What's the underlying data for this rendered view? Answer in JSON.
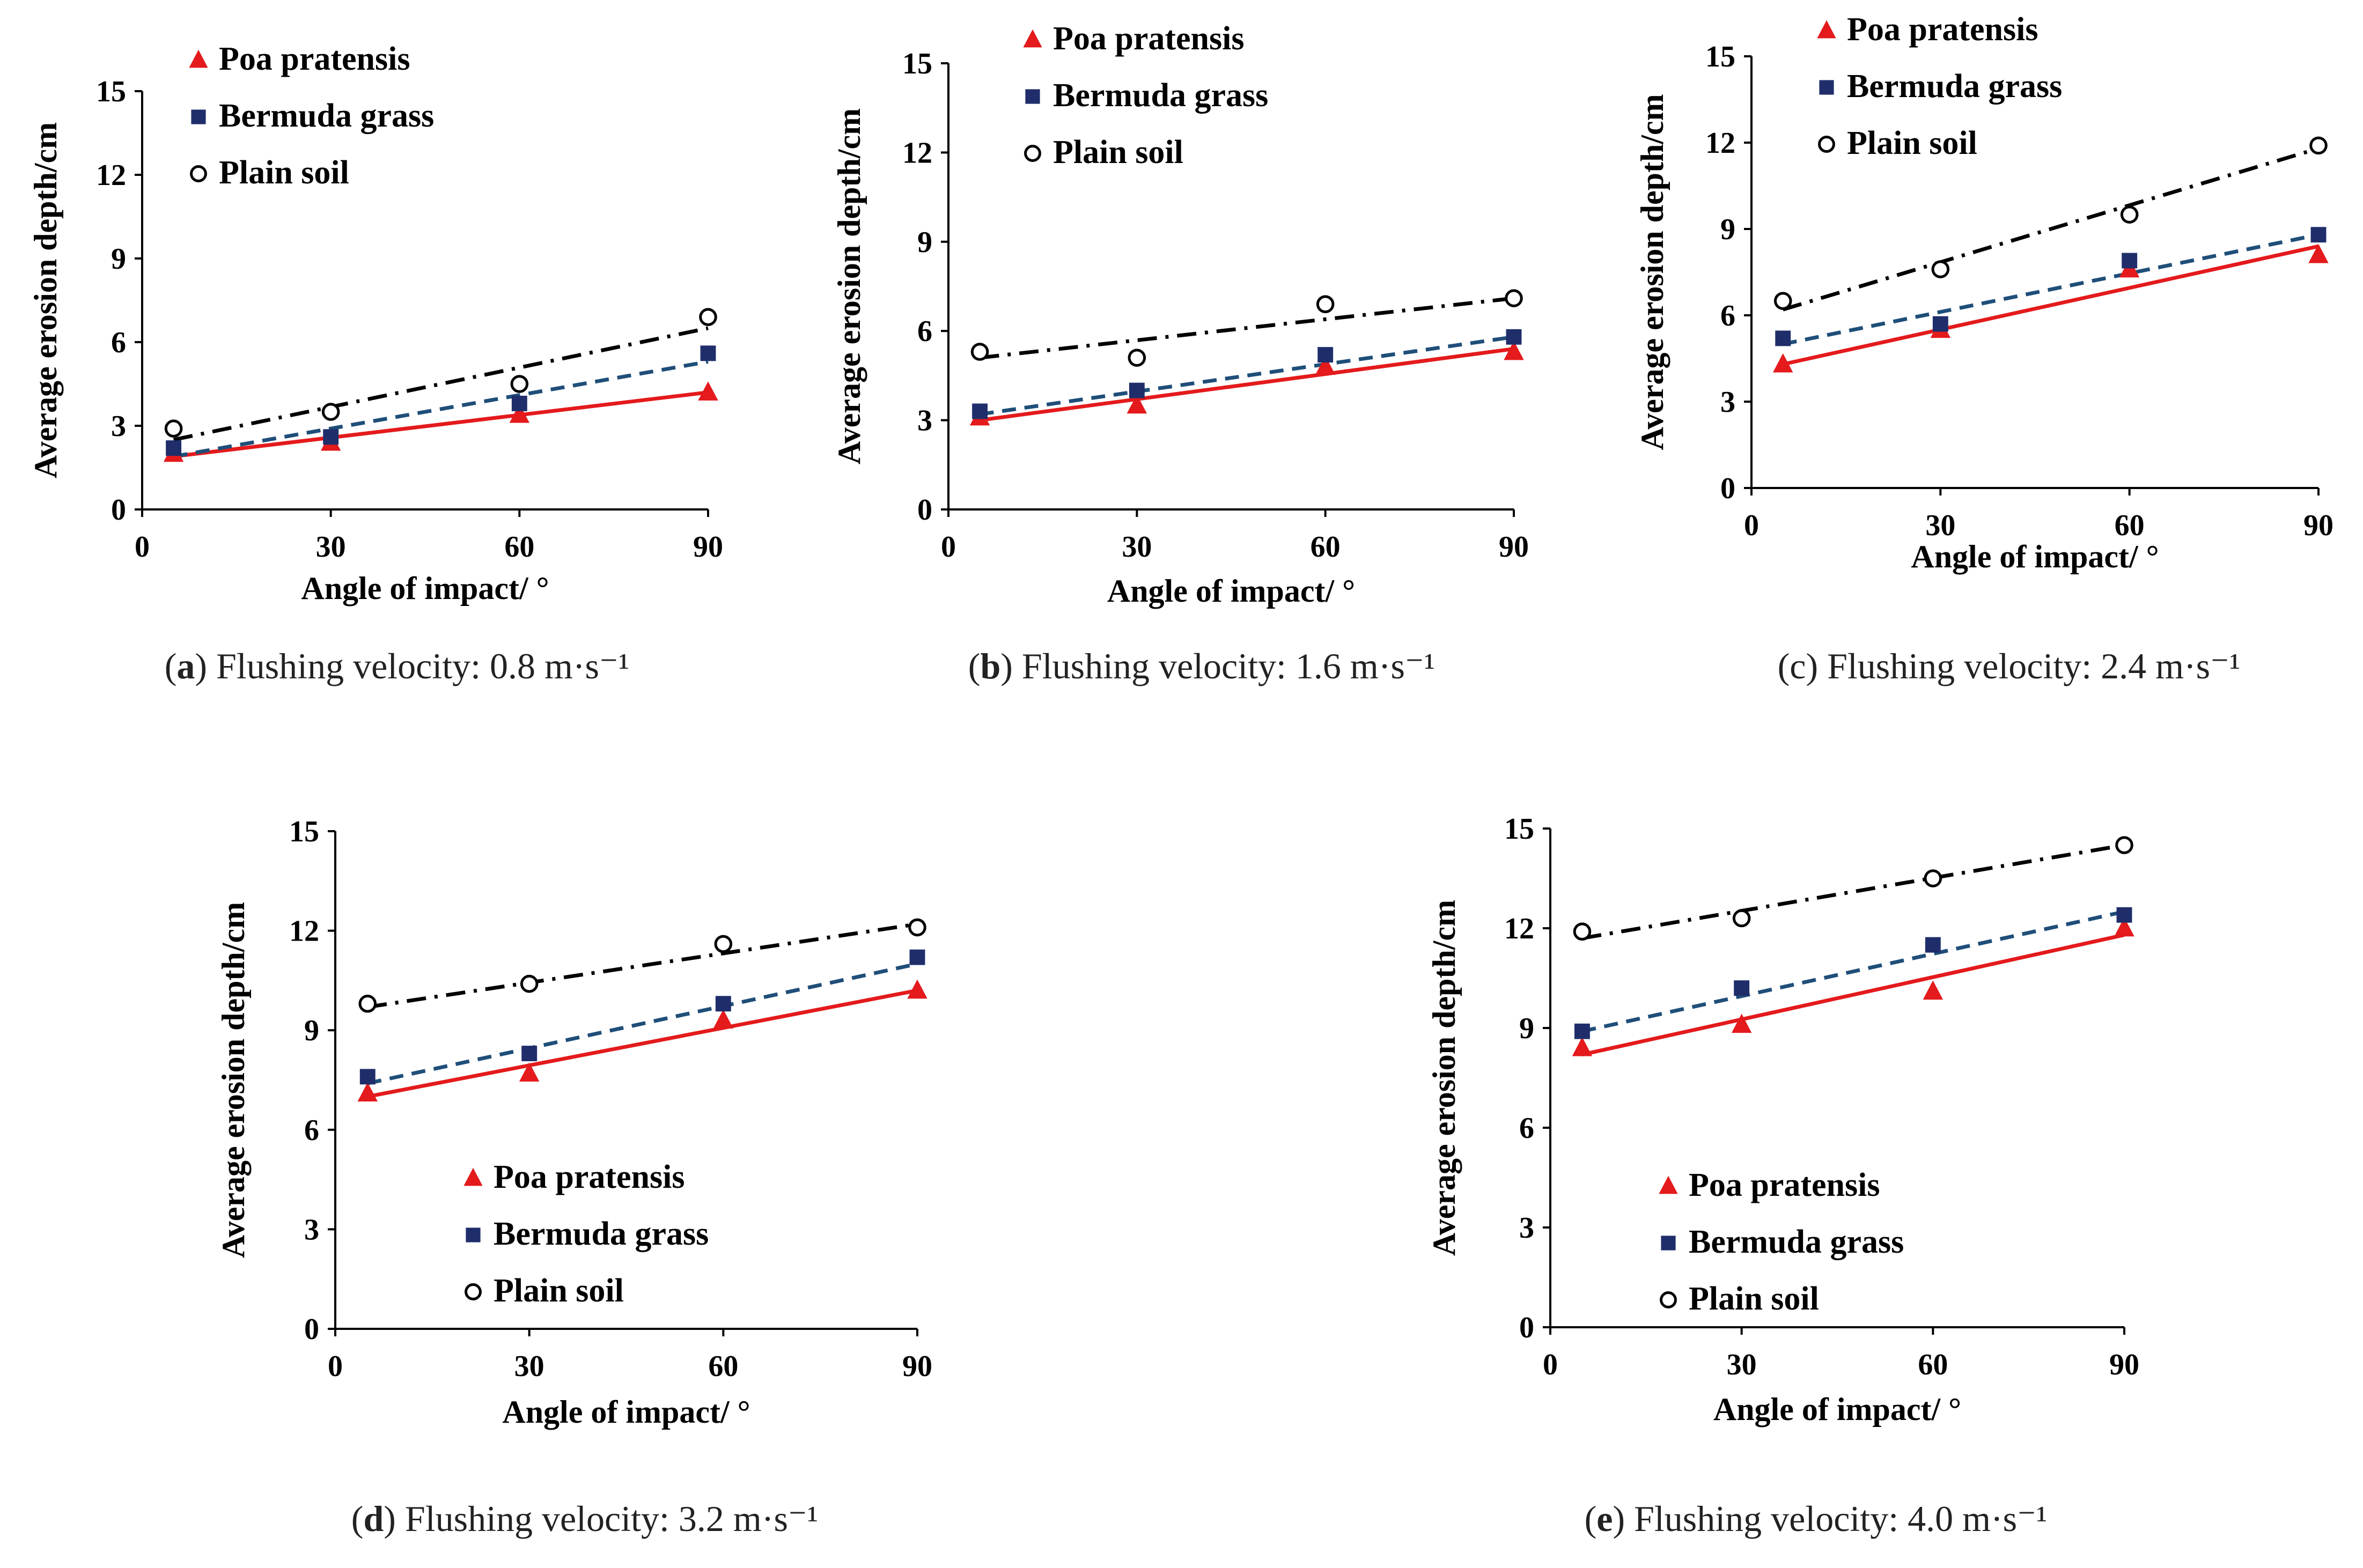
{
  "series_styles": [
    {
      "name": "Poa pratensis",
      "marker": "triangle",
      "color": "#e41a1c",
      "line": "solid"
    },
    {
      "name": "Bermuda grass",
      "marker": "square",
      "color": "#1f2e6b",
      "line_color": "#1f4e79",
      "line": "dashed"
    },
    {
      "name": "Plain soil",
      "marker": "circle-open",
      "color": "#000000",
      "line": "dashdot"
    }
  ],
  "chart_data": [
    {
      "id": "a",
      "type": "scatter",
      "caption_letter": "a",
      "caption_text": "Flushing velocity: 0.8 m·s⁻¹",
      "xlabel": "Angle of  impact/ °",
      "ylabel": "Average erosion depth/cm",
      "xlim": [
        0,
        90
      ],
      "ylim": [
        0,
        15
      ],
      "xticks": [
        0,
        30,
        60,
        90
      ],
      "yticks": [
        0,
        3,
        6,
        9,
        12,
        15
      ],
      "legend_position": "top-left",
      "x": [
        5,
        30,
        60,
        90
      ],
      "series": [
        {
          "name": "Poa pratensis",
          "values": [
            2.0,
            2.4,
            3.4,
            4.2
          ],
          "fit": [
            1.9,
            4.2
          ]
        },
        {
          "name": "Bermuda grass",
          "values": [
            2.2,
            2.6,
            3.8,
            5.6
          ],
          "fit": [
            1.9,
            5.3
          ]
        },
        {
          "name": "Plain soil",
          "values": [
            2.9,
            3.5,
            4.5,
            6.9
          ],
          "fit": [
            2.5,
            6.5
          ]
        }
      ]
    },
    {
      "id": "b",
      "type": "scatter",
      "caption_letter": "b",
      "caption_text": "Flushing velocity: 1.6 m·s⁻¹",
      "xlabel": "Angle of impact/ °",
      "ylabel": "Average erosion depth/cm",
      "xlim": [
        0,
        90
      ],
      "ylim": [
        0,
        15
      ],
      "xticks": [
        0,
        30,
        60,
        90
      ],
      "yticks": [
        0,
        3,
        6,
        9,
        12,
        15
      ],
      "legend_position": "top-left",
      "x": [
        5,
        30,
        60,
        90
      ],
      "series": [
        {
          "name": "Poa pratensis",
          "values": [
            3.1,
            3.5,
            4.8,
            5.3
          ],
          "fit": [
            3.0,
            5.4
          ]
        },
        {
          "name": "Bermuda grass",
          "values": [
            3.3,
            4.0,
            5.2,
            5.8
          ],
          "fit": [
            3.2,
            5.8
          ]
        },
        {
          "name": "Plain soil",
          "values": [
            5.3,
            5.1,
            6.9,
            7.1
          ],
          "fit": [
            5.1,
            7.1
          ]
        }
      ]
    },
    {
      "id": "c",
      "type": "scatter",
      "caption_letter": "c",
      "caption_text": "Flushing velocity: 2.4 m·s⁻¹",
      "xlabel": "Angle of impact/ °",
      "ylabel": "Average erosion depth/cm",
      "xlim": [
        0,
        90
      ],
      "ylim": [
        0,
        15
      ],
      "xticks": [
        0,
        30,
        60,
        90
      ],
      "yticks": [
        0,
        3,
        6,
        9,
        12,
        15
      ],
      "legend_position": "top-left",
      "x": [
        5,
        30,
        60,
        90
      ],
      "series": [
        {
          "name": "Poa pratensis",
          "values": [
            4.3,
            5.5,
            7.6,
            8.1
          ],
          "fit": [
            4.3,
            8.4
          ]
        },
        {
          "name": "Bermuda grass",
          "values": [
            5.2,
            5.7,
            7.9,
            8.8
          ],
          "fit": [
            5.0,
            8.8
          ]
        },
        {
          "name": "Plain soil",
          "values": [
            6.5,
            7.6,
            9.5,
            11.9
          ],
          "fit": [
            6.2,
            11.8
          ]
        }
      ]
    },
    {
      "id": "d",
      "type": "scatter",
      "caption_letter": "d",
      "caption_text": "Flushing velocity: 3.2 m·s⁻¹",
      "xlabel": "Angle of impact/ °",
      "ylabel": "Average erosion depth/cm",
      "xlim": [
        0,
        90
      ],
      "ylim": [
        0,
        15
      ],
      "xticks": [
        0,
        30,
        60,
        90
      ],
      "yticks": [
        0,
        3,
        6,
        9,
        12,
        15
      ],
      "legend_position": "bottom-center",
      "x": [
        5,
        30,
        60,
        90
      ],
      "series": [
        {
          "name": "Poa pratensis",
          "values": [
            7.1,
            7.7,
            9.3,
            10.2
          ],
          "fit": [
            7.0,
            10.2
          ]
        },
        {
          "name": "Bermuda grass",
          "values": [
            7.6,
            8.3,
            9.8,
            11.2
          ],
          "fit": [
            7.4,
            11.0
          ]
        },
        {
          "name": "Plain soil",
          "values": [
            9.8,
            10.4,
            11.6,
            12.1
          ],
          "fit": [
            9.7,
            12.2
          ]
        }
      ]
    },
    {
      "id": "e",
      "type": "scatter",
      "caption_letter": "e",
      "caption_text": "Flushing velocity: 4.0 m·s⁻¹",
      "xlabel": "Angle of impact/ °",
      "ylabel": "Average erosion depth/cm",
      "xlim": [
        0,
        90
      ],
      "ylim": [
        0,
        15
      ],
      "xticks": [
        0,
        30,
        60,
        90
      ],
      "yticks": [
        0,
        3,
        6,
        9,
        12,
        15
      ],
      "legend_position": "bottom-center",
      "x": [
        5,
        30,
        60,
        90
      ],
      "series": [
        {
          "name": "Poa pratensis",
          "values": [
            8.4,
            9.1,
            10.1,
            12.0
          ],
          "fit": [
            8.2,
            11.8
          ]
        },
        {
          "name": "Bermuda grass",
          "values": [
            8.9,
            10.2,
            11.5,
            12.4
          ],
          "fit": [
            8.9,
            12.5
          ]
        },
        {
          "name": "Plain soil",
          "values": [
            11.9,
            12.3,
            13.5,
            14.5
          ],
          "fit": [
            11.7,
            14.5
          ]
        }
      ]
    }
  ]
}
